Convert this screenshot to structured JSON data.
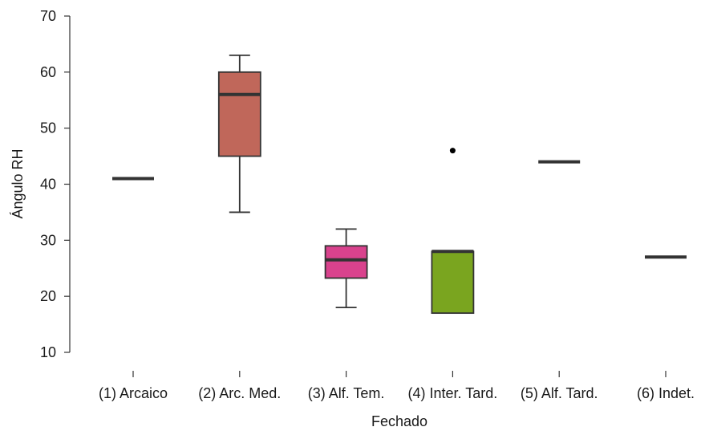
{
  "chart_data": {
    "type": "boxplot",
    "xlabel": "Fechado",
    "ylabel": "Ángulo RH",
    "ylim": [
      10,
      70
    ],
    "yticks": [
      10,
      20,
      30,
      40,
      50,
      60,
      70
    ],
    "grid": false,
    "legend": "none",
    "categories": [
      "(1) Arcaico",
      "(2) Arc. Med.",
      "(3) Alf. Tem.",
      "(4) Inter. Tard.",
      "(5) Alf. Tard.",
      "(6) Indet."
    ],
    "boxes": [
      {
        "category": "(1) Arcaico",
        "min": 41,
        "q1": 41,
        "median": 41,
        "q3": 41,
        "max": 41,
        "outliers": [],
        "color": "#ffffff"
      },
      {
        "category": "(2) Arc. Med.",
        "min": 35,
        "q1": 45,
        "median": 56,
        "q3": 60,
        "max": 63,
        "outliers": [],
        "color": "#c0675a"
      },
      {
        "category": "(3) Alf. Tem.",
        "min": 18,
        "q1": 23.25,
        "median": 26.5,
        "q3": 29,
        "max": 32,
        "outliers": [],
        "color": "#d9428d"
      },
      {
        "category": "(4) Inter. Tard.",
        "min": 17,
        "q1": 17,
        "median": 28,
        "q3": 28,
        "max": 28,
        "outliers": [
          46
        ],
        "color": "#7aa51f"
      },
      {
        "category": "(5) Alf. Tard.",
        "min": 44,
        "q1": 44,
        "median": 44,
        "q3": 44,
        "max": 44,
        "outliers": [],
        "color": "#ffffff"
      },
      {
        "category": "(6) Indet.",
        "min": 27,
        "q1": 27,
        "median": 27,
        "q3": 27,
        "max": 27,
        "outliers": [],
        "color": "#ffffff"
      }
    ]
  }
}
